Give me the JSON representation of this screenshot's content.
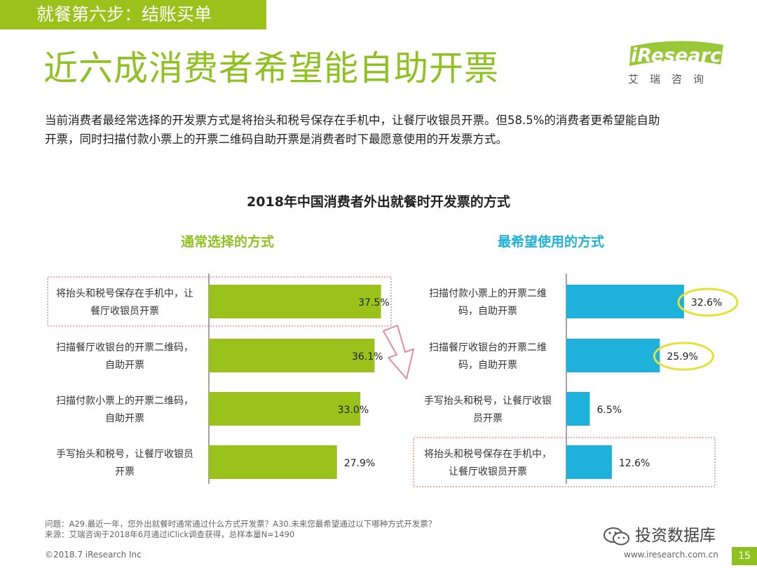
{
  "header": {
    "step_label": "就餐第六步：结账买单",
    "title": "近六成消费者希望能自助开票"
  },
  "logo": {
    "brand_i": "i",
    "brand_rest": "Research",
    "sub": "艾瑞咨询"
  },
  "summary_lines": [
    "当前消费者最经常选择的开发票方式是将抬头和税号保存在手机中，让餐厅收银员开票。但58.5%的消费者更希望能自助",
    "开票，同时扫描付款小票上的开票二维码自助开票是消费者时下最愿意使用的开发票方式。"
  ],
  "chart_title": "2018年中国消费者外出就餐时开发票的方式",
  "colors": {
    "green": "#9ac21a",
    "blue": "#1eb1dc",
    "highlight": "#e9e132",
    "dotted": "#e06060",
    "axis": "#666666"
  },
  "chart_data": [
    {
      "type": "bar",
      "orientation": "horizontal",
      "title": "通常选择的方式",
      "categories": [
        [
          "将抬头和税号保存在手机中，让",
          "餐厅收银员开票"
        ],
        [
          "扫描餐厅收银台的开票二维码，",
          "自助开票"
        ],
        [
          "扫描付款小票上的开票二维码，",
          "自助开票"
        ],
        [
          "手写抬头和税号，让餐厅收银员",
          "开票"
        ]
      ],
      "values": [
        37.5,
        36.1,
        33.0,
        27.9
      ],
      "labels": [
        "37.5%",
        "36.1%",
        "33.0%",
        "27.9%"
      ],
      "highlighted_rows": [
        0
      ],
      "color": "#9ac21a",
      "unit": "%"
    },
    {
      "type": "bar",
      "orientation": "horizontal",
      "title": "最希望使用的方式",
      "categories": [
        [
          "扫描付款小票上的开票二维",
          "码，自助开票"
        ],
        [
          "扫描餐厅收银台的开票二维",
          "码，自助开票"
        ],
        [
          "手写抬头和税号，让餐厅收银",
          "员开票"
        ],
        [
          "将抬头和税号保存在手机中，",
          "让餐厅收银员开票"
        ]
      ],
      "values": [
        32.6,
        25.9,
        6.5,
        12.6
      ],
      "labels": [
        "32.6%",
        "25.9%",
        "6.5%",
        "12.6%"
      ],
      "circled_rows": [
        0,
        1
      ],
      "highlighted_rows": [
        3
      ],
      "color": "#1eb1dc",
      "unit": "%"
    }
  ],
  "footnote": {
    "question": "问题：A29.最近一年，您外出就餐时通常通过什么方式开发票？A30.未来您最希望通过以下哪种方式开发票？",
    "source": "来源：艾瑞咨询于2018年6月通过iClick调查获得，总样本量N=1490"
  },
  "footer": {
    "copyright": "©2018.7 iResearch Inc",
    "website": "www.iresearch.com.cn",
    "wechat": "投资数据库",
    "page": "15"
  }
}
